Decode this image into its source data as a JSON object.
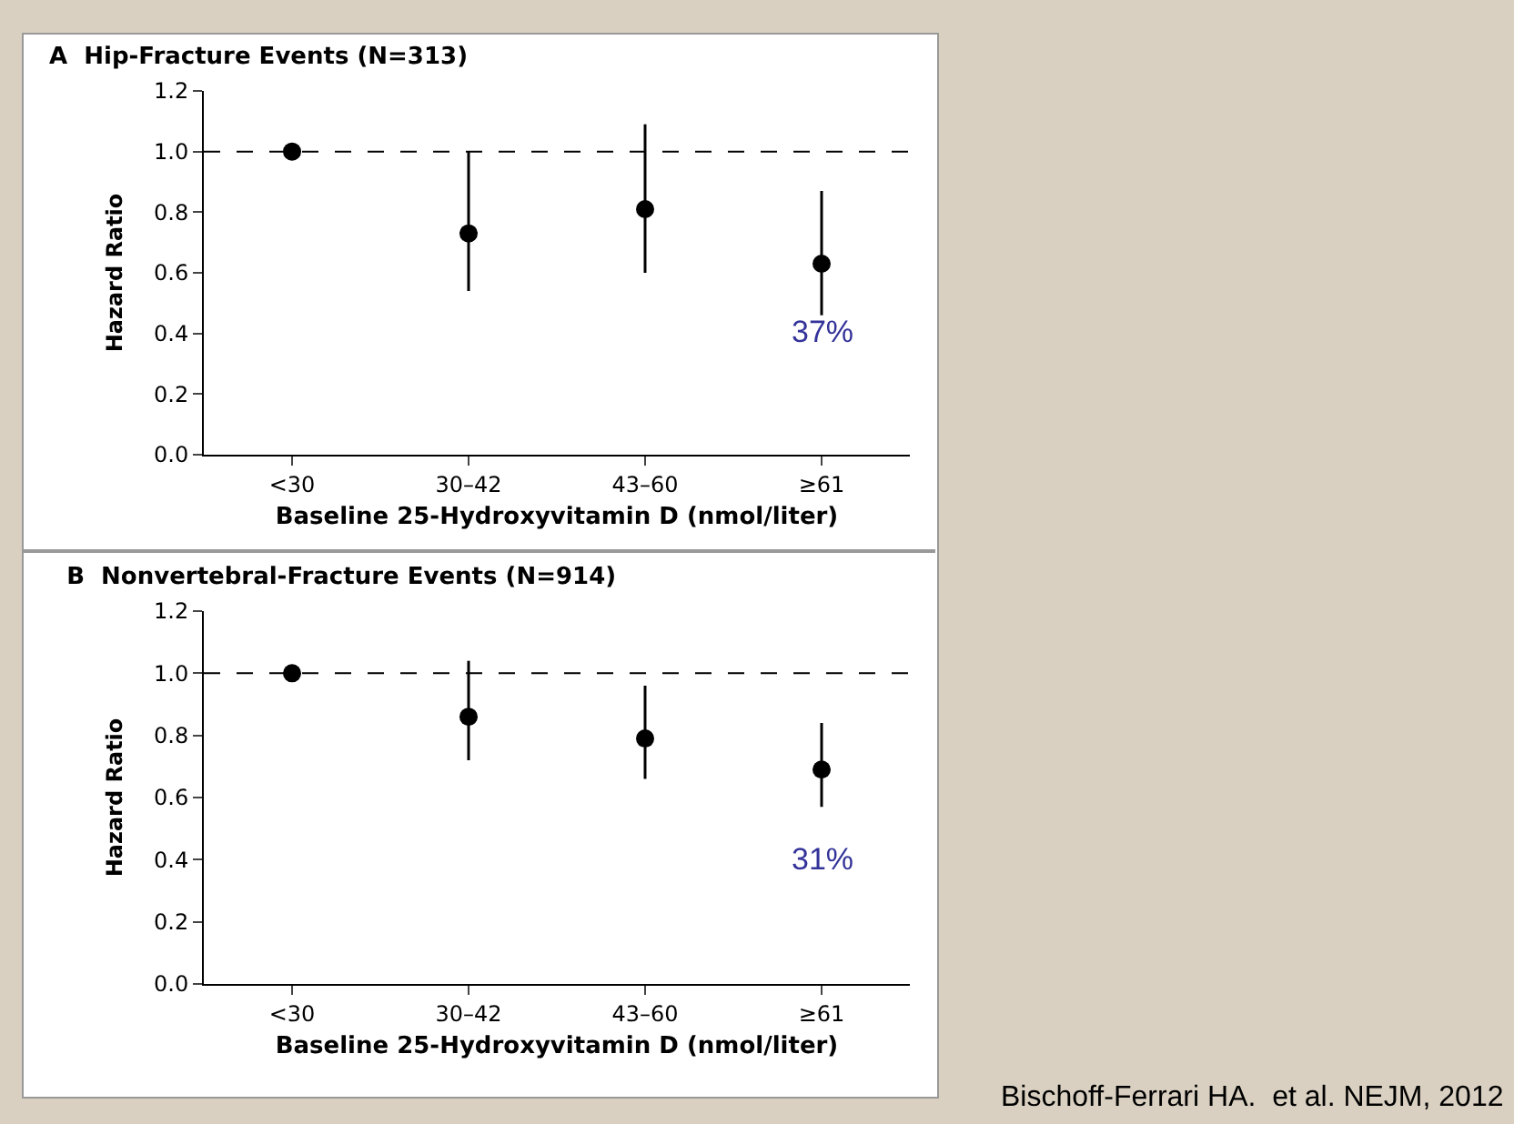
{
  "chart_data": [
    {
      "type": "scatter",
      "title": "A  Hip-Fracture Events (N=313)",
      "xlabel": "Baseline 25-Hydroxyvitamin D (nmol/liter)",
      "ylabel": "Hazard Ratio",
      "categories": [
        "<30",
        "30–42",
        "43–60",
        "≥61"
      ],
      "series": [
        {
          "color": "#000000",
          "values": [
            1.0,
            0.73,
            0.81,
            0.63
          ],
          "errors": [
            null,
            [
              0.54,
              1.0
            ],
            [
              0.6,
              1.09
            ],
            [
              0.46,
              0.87
            ]
          ]
        }
      ],
      "ylim": [
        0,
        1.2
      ],
      "yticks": [
        "0.0",
        0.2,
        0.4,
        0.6,
        0.8,
        "1.0",
        1.2
      ],
      "ref_lines": [
        {
          "axis": "y",
          "value": 1.0,
          "line_style": "dashed"
        }
      ],
      "marker": "circle",
      "grid": false,
      "annotations": [
        "37%"
      ]
    },
    {
      "type": "scatter",
      "title": "B  Nonvertebral-Fracture Events (N=914)",
      "xlabel": "Baseline 25-Hydroxyvitamin D (nmol/liter)",
      "ylabel": "Hazard Ratio",
      "categories": [
        "<30",
        "30–42",
        "43–60",
        "≥61"
      ],
      "series": [
        {
          "color": "#000000",
          "values": [
            1.0,
            0.86,
            0.79,
            0.69
          ],
          "errors": [
            null,
            [
              0.72,
              1.04
            ],
            [
              0.66,
              0.96
            ],
            [
              0.57,
              0.84
            ]
          ]
        }
      ],
      "ylim": [
        0,
        1.2
      ],
      "yticks": [
        "0.0",
        0.2,
        0.4,
        0.6,
        0.8,
        "1.0",
        1.2
      ],
      "ref_lines": [
        {
          "axis": "y",
          "value": 1.0,
          "line_style": "dashed"
        }
      ],
      "marker": "circle",
      "grid": false,
      "annotations": [
        "31%",
        "Bischoff-Ferrari HA.  et al. NEJM, 2012"
      ]
    }
  ]
}
